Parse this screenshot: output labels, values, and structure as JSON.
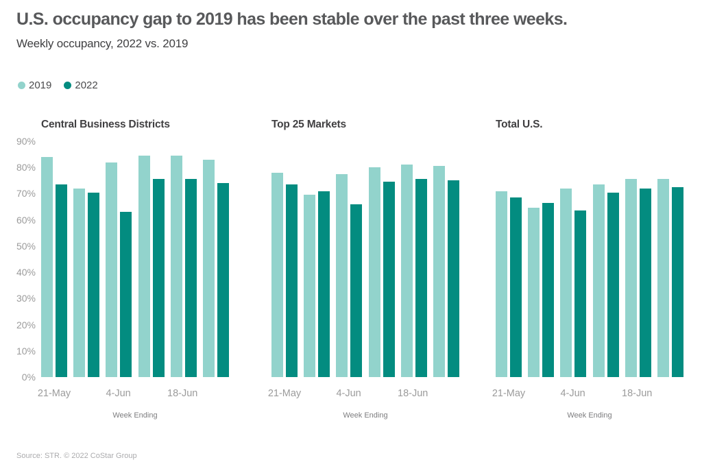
{
  "header": {
    "title": "U.S. occupancy gap to 2019 has been stable over the past three weeks.",
    "subtitle": "Weekly occupancy, 2022 vs. 2019"
  },
  "legend": {
    "items": [
      {
        "label": "2019",
        "color": "#92D3CC"
      },
      {
        "label": "2022",
        "color": "#038C80"
      }
    ]
  },
  "colors": {
    "series_2019": "#92D3CC",
    "series_2022": "#038C80",
    "title_text": "#58595B",
    "axis_text": "#9B9B9B"
  },
  "chart_data": [
    {
      "type": "bar",
      "title": "Central Business Districts",
      "xlabel": "Week Ending",
      "ylim": [
        0,
        90
      ],
      "grid": false,
      "legend_position": "top-left",
      "ytick_labels": [
        "90%",
        "80%",
        "70%",
        "60%",
        "50%",
        "40%",
        "30%",
        "20%",
        "10%",
        "0%"
      ],
      "x_tick_labels": [
        "21-May",
        "",
        "4-Jun",
        "",
        "18-Jun",
        ""
      ],
      "series": [
        {
          "name": "2019",
          "values": [
            84,
            72,
            82,
            84.5,
            84.5,
            83
          ]
        },
        {
          "name": "2022",
          "values": [
            73.5,
            70.5,
            63,
            75.5,
            75.5,
            74
          ]
        }
      ]
    },
    {
      "type": "bar",
      "title": "Top 25 Markets",
      "xlabel": "Week Ending",
      "ylim": [
        0,
        90
      ],
      "grid": false,
      "ytick_labels": [
        "90%",
        "80%",
        "70%",
        "60%",
        "50%",
        "40%",
        "30%",
        "20%",
        "10%",
        "0%"
      ],
      "x_tick_labels": [
        "21-May",
        "",
        "4-Jun",
        "",
        "18-Jun",
        ""
      ],
      "series": [
        {
          "name": "2019",
          "values": [
            78,
            69.5,
            77.5,
            80,
            81,
            80.5
          ]
        },
        {
          "name": "2022",
          "values": [
            73.5,
            71,
            66,
            74.5,
            75.5,
            75
          ]
        }
      ]
    },
    {
      "type": "bar",
      "title": "Total U.S.",
      "xlabel": "Week Ending",
      "ylim": [
        0,
        90
      ],
      "grid": false,
      "ytick_labels": [
        "90%",
        "80%",
        "70%",
        "60%",
        "50%",
        "40%",
        "30%",
        "20%",
        "10%",
        "0%"
      ],
      "x_tick_labels": [
        "21-May",
        "",
        "4-Jun",
        "",
        "18-Jun",
        ""
      ],
      "series": [
        {
          "name": "2019",
          "values": [
            71,
            64.5,
            72,
            73.5,
            75.5,
            75.5
          ]
        },
        {
          "name": "2022",
          "values": [
            68.5,
            66.5,
            63.5,
            70.5,
            72,
            72.5
          ]
        }
      ]
    }
  ],
  "footer": {
    "source": "Source: STR. © 2022 CoStar Group"
  }
}
